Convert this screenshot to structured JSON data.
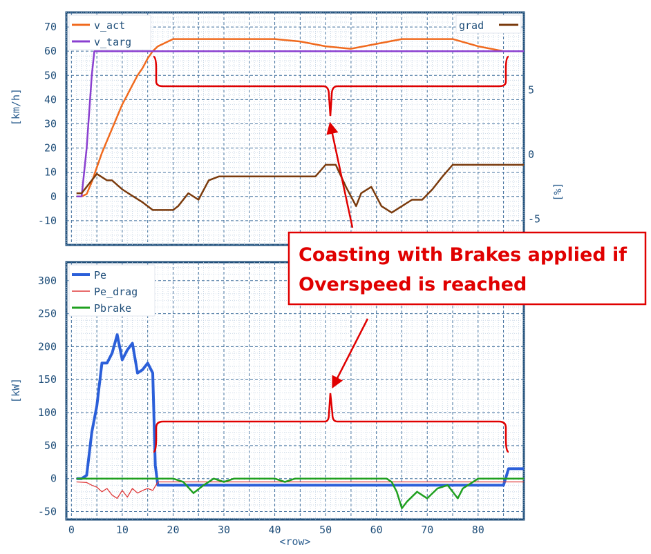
{
  "colors": {
    "v_act": "#f06a1e",
    "v_targ": "#8a3fd0",
    "grad": "#7a3a0c",
    "Pe": "#2b5fd9",
    "Pe_drag": "#e03a3a",
    "Pbrake": "#1fa01f",
    "annotation": "#e00000",
    "axis": "#1f4e79",
    "grid": "#2a5a8a"
  },
  "annotation": {
    "line1": "Coasting with Brakes applied if",
    "line2": "Overspeed is reached"
  },
  "chart_data": [
    {
      "type": "line",
      "name": "speed-panel",
      "xlabel": "",
      "ylabel": "[km/h]",
      "y2label": "[%]",
      "xlim": [
        -1,
        89
      ],
      "ylim": [
        -20,
        76
      ],
      "y2lim": [
        -7,
        11
      ],
      "yticks": [
        "70",
        "60",
        "50",
        "40",
        "30",
        "20",
        "10",
        "0",
        "-10"
      ],
      "y2ticks": [
        "5",
        "0",
        "-5"
      ],
      "legend": {
        "left": [
          "v_act",
          "v_targ"
        ],
        "right": [
          "grad"
        ]
      },
      "series": [
        {
          "name": "v_act",
          "axis": "left",
          "x": [
            1,
            2,
            3,
            4,
            5,
            6,
            7,
            8,
            9,
            10,
            11,
            12,
            13,
            14,
            15,
            16,
            17,
            18,
            19,
            20,
            22,
            25,
            30,
            35,
            40,
            45,
            50,
            55,
            60,
            65,
            70,
            75,
            80,
            85,
            89
          ],
          "y": [
            0,
            0,
            1,
            6,
            12,
            18,
            23,
            28,
            33,
            38,
            42,
            46,
            50,
            53,
            57,
            60,
            62,
            63,
            64,
            65,
            65,
            65,
            65,
            65,
            65,
            64,
            62,
            61,
            63,
            65,
            65,
            65,
            62,
            60,
            60
          ]
        },
        {
          "name": "v_targ",
          "axis": "left",
          "x": [
            1,
            2,
            3,
            4,
            4.5,
            89
          ],
          "y": [
            0,
            0,
            20,
            50,
            60,
            60
          ]
        },
        {
          "name": "grad",
          "axis": "right",
          "x": [
            1,
            2,
            4,
            5,
            7,
            8,
            10,
            12,
            14,
            16,
            18,
            20,
            21,
            23,
            25,
            27,
            29,
            31,
            35,
            40,
            45,
            48,
            50,
            52,
            54,
            56,
            57,
            59,
            61,
            63,
            65,
            67,
            69,
            71,
            73,
            75,
            77,
            79,
            82,
            85,
            89
          ],
          "y": [
            -3,
            -3,
            -2,
            -1.5,
            -2,
            -2,
            -2.7,
            -3.2,
            -3.7,
            -4.3,
            -4.3,
            -4.3,
            -4,
            -3,
            -3.5,
            -2,
            -1.7,
            -1.7,
            -1.7,
            -1.7,
            -1.7,
            -1.7,
            -0.8,
            -0.8,
            -2.5,
            -4,
            -3,
            -2.5,
            -4,
            -4.5,
            -4,
            -3.5,
            -3.5,
            -2.7,
            -1.7,
            -0.8,
            -0.8,
            -0.8,
            -0.8,
            -0.8,
            -0.8
          ]
        }
      ]
    },
    {
      "type": "line",
      "name": "power-panel",
      "xlabel": "<row>",
      "ylabel": "[kW]",
      "xlim": [
        -1,
        89
      ],
      "ylim": [
        -62,
        328
      ],
      "yticks": [
        "300",
        "250",
        "200",
        "150",
        "100",
        "50",
        "0",
        "-50"
      ],
      "xticks": [
        "0",
        "10",
        "20",
        "30",
        "40",
        "50",
        "60",
        "70",
        "80"
      ],
      "legend": {
        "left": [
          "Pe",
          "Pe_drag",
          "Pbrake"
        ]
      },
      "series": [
        {
          "name": "Pe",
          "x": [
            1,
            2,
            3,
            4,
            5,
            6,
            7,
            8,
            9,
            10,
            11,
            12,
            13,
            14,
            15,
            16,
            16.5,
            17,
            20,
            30,
            40,
            50,
            60,
            70,
            80,
            85,
            86,
            89
          ],
          "y": [
            0,
            0,
            5,
            70,
            110,
            175,
            175,
            190,
            218,
            180,
            195,
            205,
            160,
            165,
            175,
            160,
            20,
            -10,
            -10,
            -10,
            -10,
            -10,
            -10,
            -10,
            -10,
            -10,
            15,
            15
          ]
        },
        {
          "name": "Pe_drag",
          "x": [
            1,
            3,
            4,
            5,
            6,
            7,
            8,
            9,
            10,
            11,
            12,
            13,
            14,
            15,
            16,
            17,
            20,
            30,
            40,
            50,
            60,
            70,
            80,
            85,
            89
          ],
          "y": [
            -5,
            -6,
            -10,
            -13,
            -20,
            -15,
            -25,
            -30,
            -18,
            -28,
            -15,
            -22,
            -18,
            -15,
            -18,
            -5,
            -5,
            -5,
            -5,
            -5,
            -5,
            -5,
            -5,
            -5,
            -5
          ]
        },
        {
          "name": "Pbrake",
          "x": [
            1,
            16,
            17,
            20,
            22,
            24,
            26,
            28,
            30,
            32,
            35,
            40,
            42,
            44,
            46,
            50,
            55,
            62,
            63,
            64,
            65,
            66,
            68,
            70,
            72,
            74,
            75,
            76,
            77,
            78,
            80,
            85,
            89
          ],
          "y": [
            0,
            0,
            0,
            0,
            -5,
            -22,
            -10,
            0,
            -5,
            0,
            0,
            0,
            -5,
            0,
            0,
            0,
            0,
            0,
            -5,
            -20,
            -45,
            -35,
            -20,
            -30,
            -15,
            -10,
            -20,
            -30,
            -15,
            -10,
            0,
            0,
            0
          ]
        }
      ]
    }
  ]
}
